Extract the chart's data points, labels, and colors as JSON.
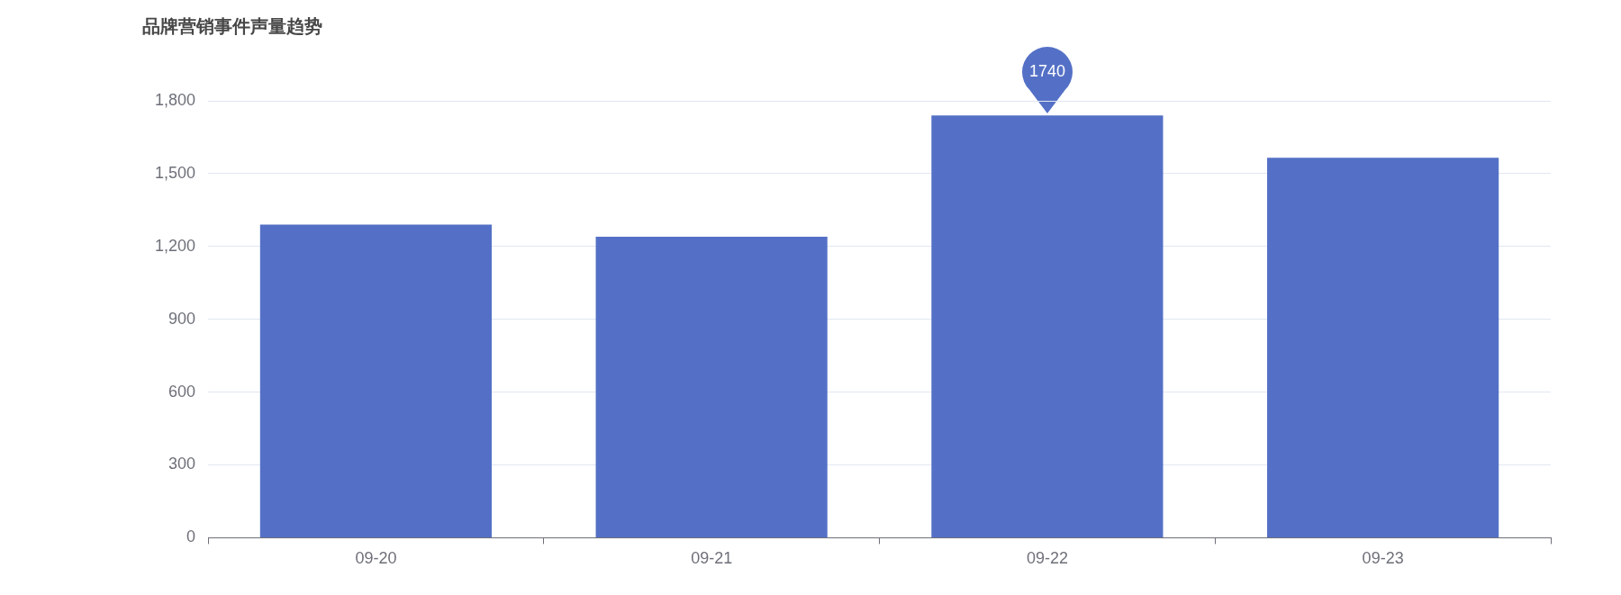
{
  "chart_data": {
    "type": "bar",
    "title": "品牌营销事件声量趋势",
    "categories": [
      "09-20",
      "09-21",
      "09-22",
      "09-23"
    ],
    "values": [
      1290,
      1240,
      1740,
      1565
    ],
    "value_labels": [
      null,
      null,
      "1740",
      null
    ],
    "color": "#5470c6",
    "ylim": [
      0,
      1800
    ],
    "yticks": [
      0,
      300,
      600,
      900,
      {
        "value": 1200,
        "label": "1,200"
      },
      {
        "value": 1500,
        "label": "1,500"
      },
      {
        "value": 1800,
        "label": "1,800"
      }
    ],
    "grid": "y"
  }
}
